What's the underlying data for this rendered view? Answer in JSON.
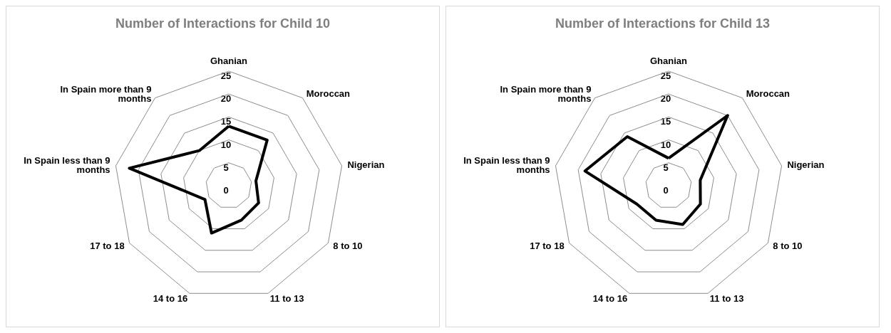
{
  "chart_data": [
    {
      "type": "radar",
      "title": "Number of Interactions for Child 10",
      "categories": [
        "Ghanian",
        "Moroccan",
        "Nigerian",
        "8 to 10",
        "11 to 13",
        "14 to 16",
        "17 to 18",
        "In Spain less than 9 months",
        "In Spain more than 9 months"
      ],
      "ylim": [
        0,
        25
      ],
      "yticks": [
        0,
        5,
        10,
        15,
        20,
        25
      ],
      "grid": true,
      "marker": "none",
      "line_style": "solid",
      "series": [
        {
          "color": "#000000",
          "values": [
            13,
            13,
            6,
            7.5,
            8,
            11,
            6,
            22,
            10
          ]
        }
      ]
    },
    {
      "type": "radar",
      "title": "Number of Interactions for Child 13",
      "categories": [
        "Ghanian",
        "Moroccan",
        "Nigerian",
        "8 to 10",
        "11 to 13",
        "14 to 16",
        "17 to 18",
        "In Spain less than 9 months",
        "In Spain more than 9 months"
      ],
      "ylim": [
        0,
        25
      ],
      "yticks": [
        0,
        5,
        10,
        15,
        20,
        25
      ],
      "grid": true,
      "marker": "none",
      "line_style": "solid",
      "series": [
        {
          "color": "#000000",
          "values": [
            6,
            20,
            7,
            8,
            9,
            8,
            8,
            18.5,
            14
          ]
        }
      ]
    }
  ]
}
